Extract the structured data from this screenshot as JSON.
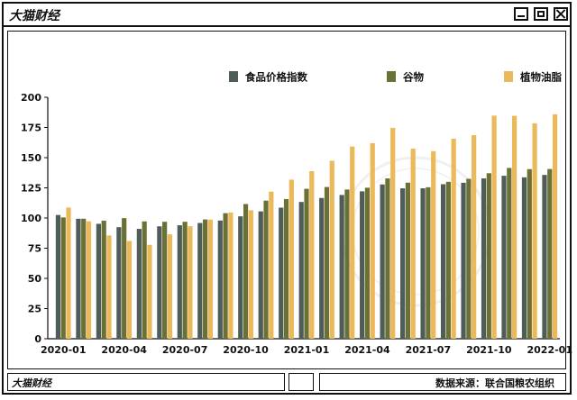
{
  "window": {
    "title": "大猫财经"
  },
  "status": {
    "left": "大猫财经",
    "right": "数据来源：联合国粮农组织"
  },
  "colors": {
    "food_index": "#4e5d57",
    "cereal": "#6b7034",
    "oil": "#ebb85a",
    "axis": "#111111"
  },
  "chart_data": {
    "type": "bar",
    "title": "",
    "xlabel": "",
    "ylabel": "",
    "ylim": [
      0,
      200
    ],
    "yticks": [
      0,
      25,
      50,
      75,
      100,
      125,
      150,
      175,
      200
    ],
    "legend_position": "top",
    "categories": [
      "2020-01",
      "2020-02",
      "2020-03",
      "2020-04",
      "2020-05",
      "2020-06",
      "2020-07",
      "2020-08",
      "2020-09",
      "2020-10",
      "2020-11",
      "2020-12",
      "2021-01",
      "2021-02",
      "2021-03",
      "2021-04",
      "2021-05",
      "2021-06",
      "2021-07",
      "2021-08",
      "2021-09",
      "2021-10",
      "2021-11",
      "2021-12",
      "2022-01"
    ],
    "xtick_labels": [
      "2020-01",
      "2020-04",
      "2020-07",
      "2020-10",
      "2021-01",
      "2021-04",
      "2021-07",
      "2021-10",
      "2022-01"
    ],
    "series": [
      {
        "name": "食品价格指数",
        "color": "#4e5d57",
        "values": [
          102.5,
          99.4,
          95.2,
          92.4,
          91.0,
          93.1,
          94.0,
          95.9,
          97.9,
          101.4,
          105.5,
          108.6,
          113.3,
          116.6,
          119.1,
          122.1,
          127.8,
          124.6,
          124.6,
          128.0,
          129.2,
          132.8,
          135.0,
          133.7,
          135.7
        ]
      },
      {
        "name": "谷物",
        "color": "#6b7034",
        "values": [
          100.5,
          99.4,
          97.8,
          99.9,
          97.2,
          96.9,
          96.9,
          98.8,
          104.0,
          111.6,
          114.4,
          115.7,
          124.2,
          125.7,
          123.6,
          125.1,
          132.8,
          129.3,
          125.5,
          130.0,
          132.5,
          137.1,
          141.5,
          140.5,
          140.6
        ]
      },
      {
        "name": "植物油脂",
        "color": "#ebb85a",
        "values": [
          108.7,
          97.3,
          85.5,
          81.0,
          77.8,
          86.5,
          93.2,
          98.7,
          104.6,
          106.4,
          121.9,
          131.8,
          138.8,
          147.4,
          159.2,
          162.0,
          174.7,
          157.5,
          155.4,
          165.7,
          168.6,
          184.8,
          184.6,
          178.5,
          185.9
        ]
      }
    ]
  }
}
